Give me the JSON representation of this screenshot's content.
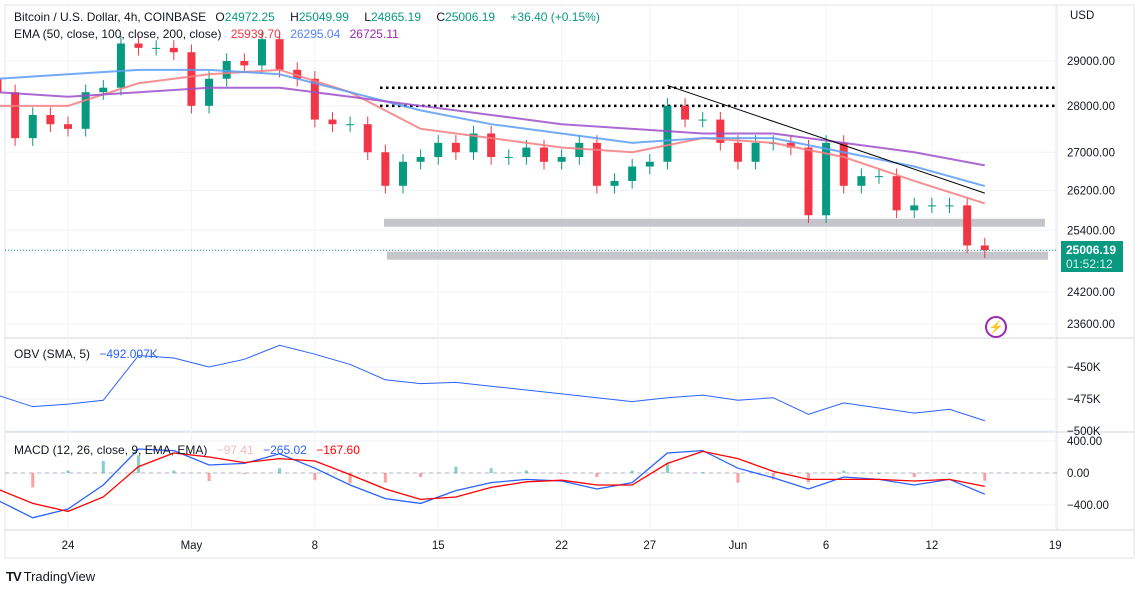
{
  "header": {
    "symbol": "Bitcoin / U.S. Dollar, 4h, COINBASE",
    "open_label": "O",
    "open": "24972.25",
    "high_label": "H",
    "high": "25049.99",
    "low_label": "L",
    "low": "24865.19",
    "close_label": "C",
    "close": "25006.19",
    "change": "+36.40 (+0.15%)",
    "ema_label": "EMA (50, close, 100, close, 200, close)",
    "ema50": "25939.70",
    "ema100": "26295.04",
    "ema200": "26725.11",
    "currency": "USD"
  },
  "price_tag": {
    "price": "25006.19",
    "countdown": "01:52:12"
  },
  "obv_legend": {
    "label": "OBV (SMA, 5)",
    "value": "−492.007K"
  },
  "macd_legend": {
    "label": "MACD (12, 26, close, 9, EMA, EMA)",
    "hist": "−97.41",
    "macd": "−265.02",
    "signal": "−167.60"
  },
  "branding": "TradingView",
  "icons": {
    "alert": "lightning-bolt-icon",
    "logo": "tradingview-logo-icon"
  },
  "colors": {
    "up": "#089981",
    "down": "#f23645",
    "ema50": "#f77c80",
    "ema100": "#5b9cf6",
    "ema200": "#9c4fc9",
    "obv": "#2962ff",
    "macd": "#2962ff",
    "signal": "#ff0000"
  },
  "chart_data": [
    {
      "type": "candlestick",
      "title": "Bitcoin / U.S. Dollar, 4h, COINBASE",
      "scale": "log",
      "y_ticks": [
        "29000.00",
        "28000.00",
        "27000.00",
        "26200.00",
        "25400.00",
        "24200.00",
        "23600.00"
      ],
      "x_ticks": [
        [
          "2023-04-24",
          "24"
        ],
        [
          "2023-05-01",
          "May"
        ],
        [
          "2023-05-08",
          "8"
        ],
        [
          "2023-05-15",
          "15"
        ],
        [
          "2023-05-22",
          "22"
        ],
        [
          "2023-05-27",
          "27"
        ],
        [
          "2023-06-01",
          "Jun"
        ],
        [
          "2023-06-06",
          "6"
        ],
        [
          "2023-06-12",
          "12"
        ],
        [
          "2023-06-19",
          "19"
        ]
      ],
      "start_date": "2023-04-20",
      "daily_close": [
        28300,
        27300,
        27800,
        27600,
        27500,
        28300,
        28400,
        29400,
        29300,
        29300,
        29200,
        28000,
        28600,
        29000,
        28900,
        29500,
        28800,
        28600,
        27700,
        27600,
        27600,
        27000,
        26300,
        26800,
        26900,
        27200,
        27000,
        27400,
        26900,
        26900,
        27100,
        26800,
        26900,
        27200,
        26300,
        26400,
        26700,
        26800,
        28000,
        27700,
        27700,
        27200,
        26800,
        27200,
        27200,
        27100,
        25700,
        27200,
        26300,
        26500,
        26500,
        25800,
        25900,
        25900,
        25900,
        25100,
        25006.19
      ],
      "ema_dates": [
        "2023-04-20",
        "2023-04-24",
        "2023-04-28",
        "2023-05-02",
        "2023-05-06",
        "2023-05-10",
        "2023-05-14",
        "2023-05-18",
        "2023-05-22",
        "2023-05-26",
        "2023-05-30",
        "2023-06-03",
        "2023-06-07",
        "2023-06-11",
        "2023-06-15"
      ],
      "series": [
        {
          "name": "EMA 50",
          "values": [
            28000,
            28000,
            28500,
            28700,
            28800,
            28300,
            27500,
            27300,
            27100,
            27000,
            27300,
            27200,
            26900,
            26400,
            25939.7
          ]
        },
        {
          "name": "EMA 100",
          "values": [
            28600,
            28700,
            28800,
            28800,
            28700,
            28300,
            27900,
            27600,
            27400,
            27200,
            27300,
            27300,
            27000,
            26700,
            26295.04
          ]
        },
        {
          "name": "EMA 200",
          "values": [
            28300,
            28200,
            28300,
            28400,
            28400,
            28200,
            28000,
            27800,
            27600,
            27500,
            27400,
            27400,
            27200,
            27000,
            26725.11
          ]
        }
      ],
      "horizontal_levels_dotted": [
        28400,
        28000
      ],
      "support_zones": [
        25550,
        24900
      ],
      "trendline": [
        [
          "2023-05-28",
          28450
        ],
        [
          "2023-06-15",
          26150
        ]
      ],
      "current_price": 25006.19
    },
    {
      "type": "line",
      "title": "OBV (SMA, 5)",
      "y_ticks": [
        "−450K",
        "−475K",
        "−500K"
      ],
      "dates_step_days": 2,
      "values": [
        -472,
        -481,
        -479,
        -476,
        -441,
        -443,
        -450,
        -444,
        -433,
        -440,
        -448,
        -460,
        -463,
        -462,
        -465,
        -468,
        -471,
        -474,
        -477,
        -474,
        -472,
        -476,
        -474,
        -487,
        -478,
        -482,
        -486,
        -483,
        -492.007
      ],
      "unit": "K"
    },
    {
      "type": "line",
      "title": "MACD (12, 26, close, 9, EMA, EMA)",
      "y_ticks": [
        "400.00",
        "0.00",
        "−400.00"
      ],
      "dates_step_days": 2,
      "macd": [
        -340,
        -560,
        -450,
        -150,
        300,
        280,
        100,
        120,
        240,
        60,
        -150,
        -320,
        -380,
        -220,
        -120,
        -80,
        -100,
        -200,
        -120,
        250,
        280,
        60,
        -60,
        -200,
        -50,
        -80,
        -150,
        -80,
        -265.02
      ],
      "signal": [
        -200,
        -380,
        -480,
        -300,
        80,
        250,
        200,
        130,
        180,
        150,
        -20,
        -200,
        -330,
        -300,
        -180,
        -110,
        -90,
        -150,
        -150,
        120,
        270,
        180,
        20,
        -80,
        -80,
        -80,
        -100,
        -80,
        -167.6
      ]
    }
  ]
}
